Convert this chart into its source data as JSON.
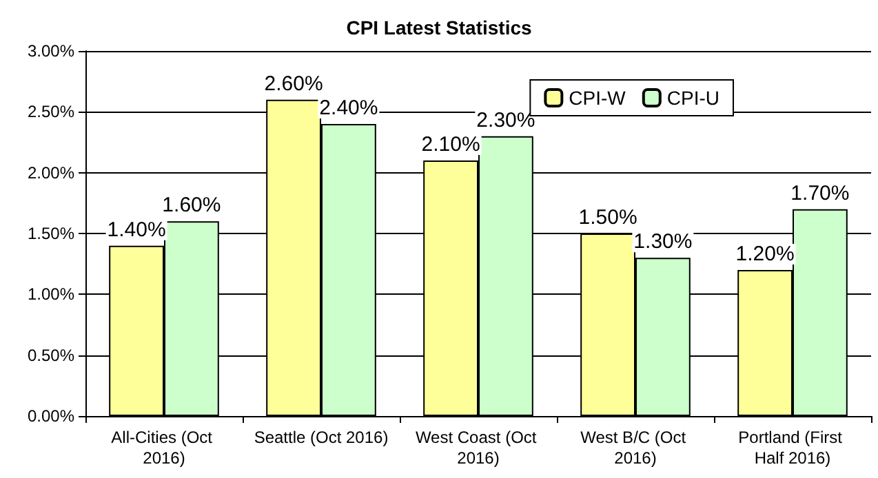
{
  "chart_data": {
    "type": "bar",
    "title": "CPI Latest Statistics",
    "categories": [
      "All-Cities (Oct 2016)",
      "Seattle (Oct 2016)",
      "West Coast (Oct 2016)",
      "West B/C (Oct 2016)",
      "Portland (First Half 2016)"
    ],
    "series": [
      {
        "name": "CPI-W",
        "color": "#ffff99",
        "values": [
          1.4,
          2.6,
          2.1,
          1.5,
          1.2
        ],
        "value_labels": [
          "1.40%",
          "2.60%",
          "2.10%",
          "1.50%",
          "1.20%"
        ]
      },
      {
        "name": "CPI-U",
        "color": "#ccffcc",
        "values": [
          1.6,
          2.4,
          2.3,
          1.3,
          1.7
        ],
        "value_labels": [
          "1.60%",
          "2.40%",
          "2.30%",
          "1.30%",
          "1.70%"
        ]
      }
    ],
    "ylim": [
      0,
      3
    ],
    "yticks": [
      {
        "value": 0,
        "label": "0.00%"
      },
      {
        "value": 0.5,
        "label": "0.50%"
      },
      {
        "value": 1,
        "label": "1.00%"
      },
      {
        "value": 1.5,
        "label": "1.50%"
      },
      {
        "value": 2,
        "label": "2.00%"
      },
      {
        "value": 2.5,
        "label": "2.50%"
      },
      {
        "value": 3,
        "label": "3.00%"
      }
    ],
    "grid": "y",
    "legend": "top right"
  }
}
